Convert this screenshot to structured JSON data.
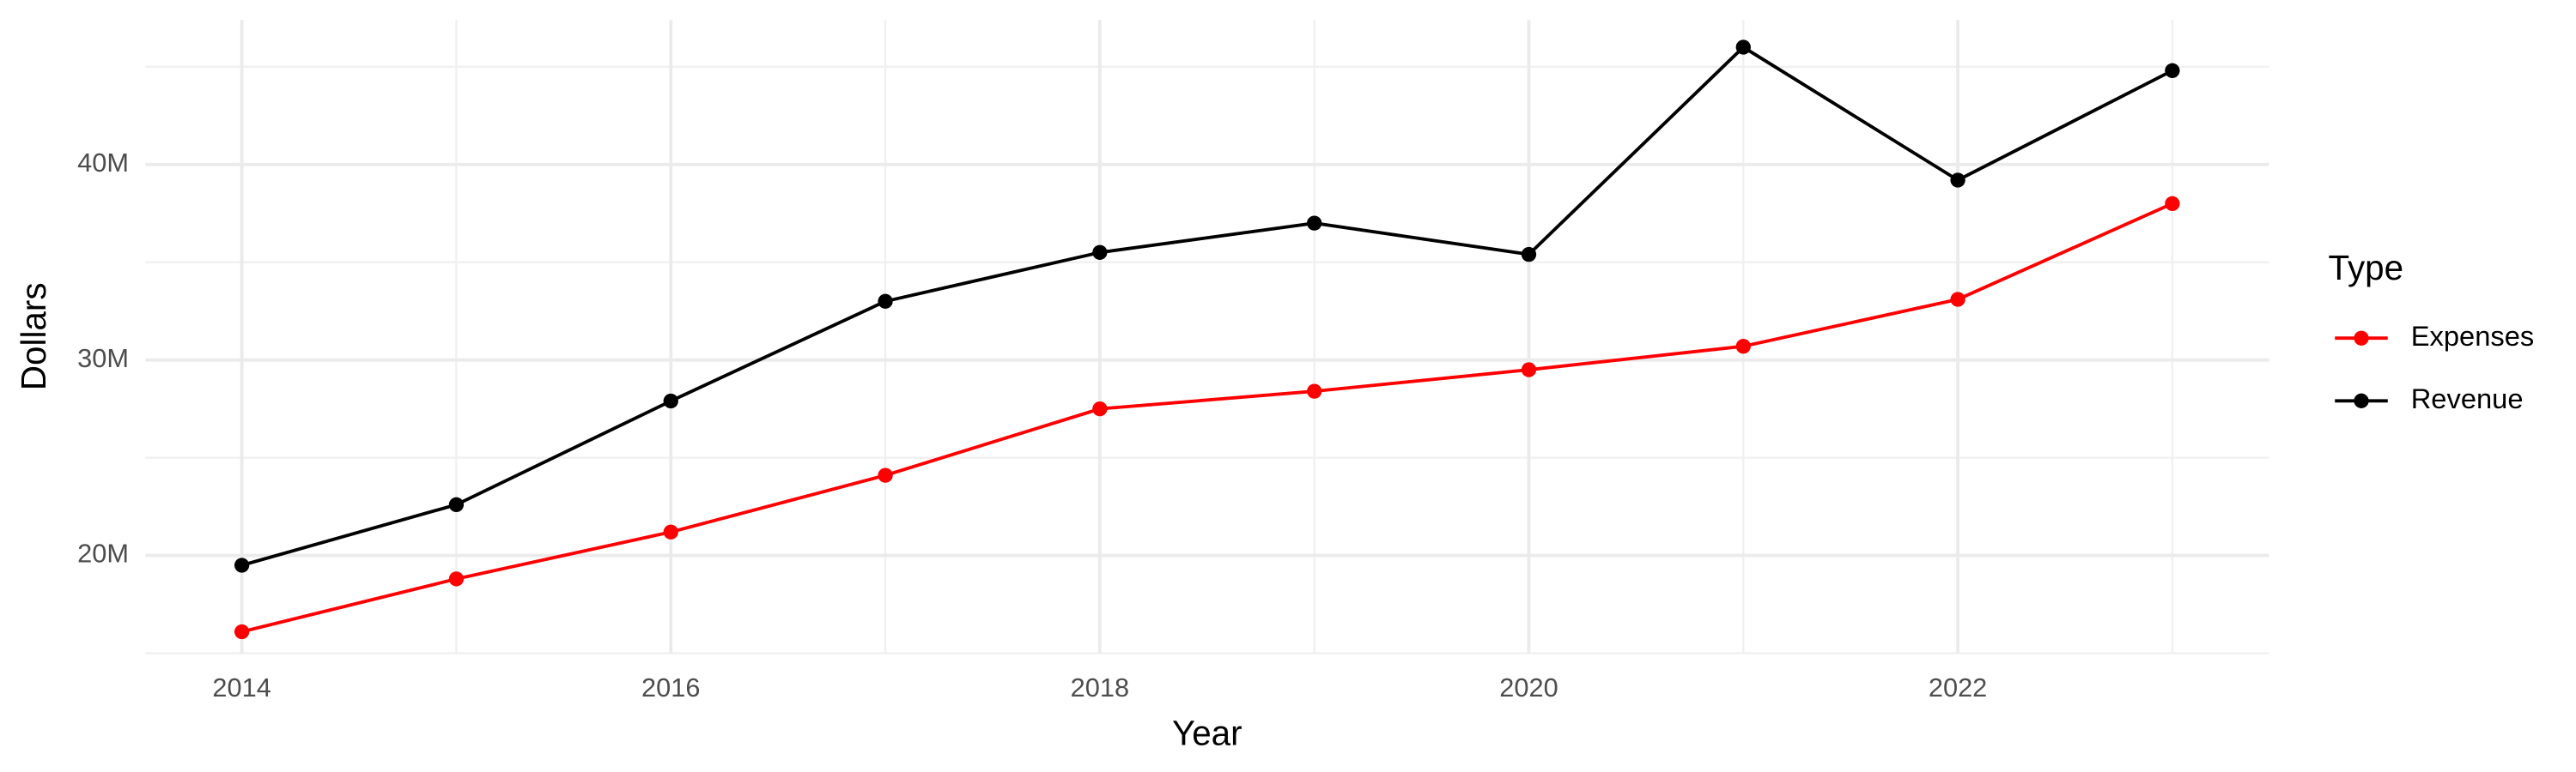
{
  "chart_data": {
    "type": "line",
    "x_label": "Year",
    "y_label": "Dollars",
    "legend_title": "Type",
    "x": [
      2014,
      2015,
      2016,
      2017,
      2018,
      2019,
      2020,
      2021,
      2022,
      2023
    ],
    "series": [
      {
        "name": "Expenses",
        "color": "#ff0000",
        "values": [
          16100000,
          18800000,
          21200000,
          24100000,
          27500000,
          28400000,
          29500000,
          30700000,
          33100000,
          38000000
        ]
      },
      {
        "name": "Revenue",
        "color": "#000000",
        "values": [
          19500000,
          22600000,
          27900000,
          33000000,
          35500000,
          37000000,
          35400000,
          46000000,
          39200000,
          44800000
        ]
      }
    ],
    "xlim": [
      2013.55,
      2023.45
    ],
    "xticks": [
      2014,
      2016,
      2018,
      2020,
      2022
    ],
    "ylim": [
      15000000,
      47400000
    ],
    "yticks": [
      {
        "value": 20000000,
        "label": "20M"
      },
      {
        "value": 30000000,
        "label": "30M"
      },
      {
        "value": 40000000,
        "label": "40M"
      }
    ],
    "grid": true,
    "legend": "right"
  }
}
